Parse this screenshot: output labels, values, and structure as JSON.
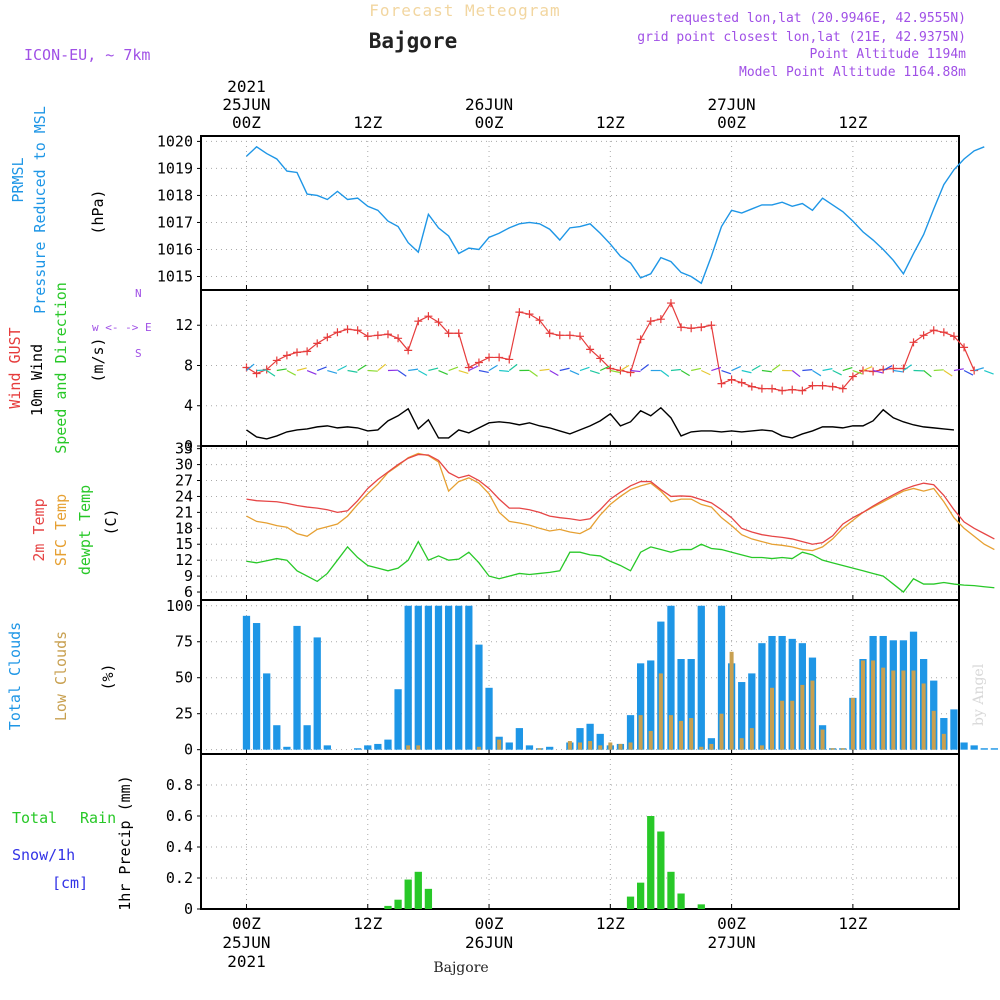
{
  "header": {
    "forecast_title": "Forecast Meteogram",
    "location": "Bajgore",
    "model": "ICON-EU, ~ 7km",
    "requested": "requested lon,lat (20.9946E, 42.9555N)",
    "grid_point": "grid point closest lon,lat (21E, 42.9375N)",
    "point_altitude": "Point Altitude 1194m",
    "model_altitude": "Model Point Altitude 1164.88m",
    "footer_location": "Bajgore",
    "watermark": "by Angel"
  },
  "colors": {
    "pressure": "#1e96e6",
    "gust": "#e63c3c",
    "wind": "#000000",
    "temp2m": "#e64646",
    "sfc": "#e6a032",
    "dewpt": "#28c828",
    "total_clouds": "#1e96e6",
    "low_clouds": "#c8a050",
    "rain": "#28c828",
    "snow": "#3232e6",
    "purple": "#a050e6"
  },
  "axis_labels": {
    "top": [
      {
        "x": 0,
        "lines": [
          "2021",
          "25JUN",
          "00Z"
        ]
      },
      {
        "x": 12,
        "lines": [
          "12Z"
        ]
      },
      {
        "x": 24,
        "lines": [
          "26JUN",
          "00Z"
        ]
      },
      {
        "x": 36,
        "lines": [
          "12Z"
        ]
      },
      {
        "x": 48,
        "lines": [
          "27JUN",
          "00Z"
        ]
      },
      {
        "x": 60,
        "lines": [
          "12Z"
        ]
      }
    ],
    "bottom": [
      {
        "x": 0,
        "lines": [
          "00Z",
          "25JUN",
          "2021"
        ]
      },
      {
        "x": 12,
        "lines": [
          "12Z"
        ]
      },
      {
        "x": 24,
        "lines": [
          "00Z",
          "26JUN"
        ]
      },
      {
        "x": 36,
        "lines": [
          "12Z"
        ]
      },
      {
        "x": 48,
        "lines": [
          "00Z",
          "27JUN"
        ]
      },
      {
        "x": 60,
        "lines": [
          "12Z"
        ]
      }
    ]
  },
  "chart_data": [
    {
      "type": "line",
      "xlabel": "",
      "ylabel": [
        "PRMSL",
        "Pressure Reduced to MSL",
        "(hPa)"
      ],
      "ylim": [
        1014.5,
        1020.2
      ],
      "yticks": [
        1015,
        1016,
        1017,
        1018,
        1019,
        1020
      ],
      "grid": true,
      "series": [
        {
          "values": [
            1019.45,
            1019.8,
            1019.55,
            1019.35,
            1018.9,
            1018.85,
            1018.05,
            1018.0,
            1017.85,
            1018.15,
            1017.85,
            1017.9,
            1017.6,
            1017.45,
            1017.05,
            1016.85,
            1016.25,
            1015.9,
            1017.3,
            1016.8,
            1016.5,
            1015.85,
            1016.05,
            1016.0,
            1016.45,
            1016.6,
            1016.8,
            1016.95,
            1017.0,
            1016.95,
            1016.75,
            1016.35,
            1016.8,
            1016.85,
            1016.95,
            1016.6,
            1016.2,
            1015.75,
            1015.5,
            1014.95,
            1015.1,
            1015.7,
            1015.55,
            1015.15,
            1015.0,
            1014.75,
            1015.75,
            1016.85,
            1017.45,
            1017.35,
            1017.5,
            1017.65,
            1017.65,
            1017.75,
            1017.6,
            1017.7,
            1017.45,
            1017.9,
            1017.65,
            1017.4,
            1017.05,
            1016.65,
            1016.35,
            1016.0,
            1015.6,
            1015.1,
            1015.85,
            1016.55,
            1017.5,
            1018.4,
            1018.95,
            1019.35,
            1019.65,
            1019.8
          ]
        }
      ]
    },
    {
      "type": "line",
      "xlabel": "",
      "ylabel": [
        "Wind GUST",
        "10m Wind",
        "Speed and Direction",
        "(m/s)"
      ],
      "ylim": [
        0,
        15.5
      ],
      "yticks": [
        0,
        4,
        8,
        12
      ],
      "compass": "w <- -> E",
      "compass_n": "N",
      "compass_s": "S",
      "grid": true,
      "series": [
        {
          "values": [
            7.8,
            7.2,
            7.6,
            8.5,
            9.0,
            9.3,
            9.4,
            10.2,
            10.8,
            11.3,
            11.6,
            11.5,
            10.9,
            11.0,
            11.1,
            10.7,
            9.5,
            12.4,
            12.9,
            12.3,
            11.2,
            11.2,
            7.8,
            8.3,
            8.8,
            8.8,
            8.6,
            13.3,
            13.1,
            12.5,
            11.2,
            11.0,
            11.0,
            10.9,
            9.6,
            8.7,
            7.7,
            7.5,
            7.3,
            10.6,
            12.4,
            12.6,
            14.2,
            11.8,
            11.7,
            11.8,
            12.0,
            6.2,
            6.6,
            6.3,
            5.9,
            5.7,
            5.7,
            5.5,
            5.6,
            5.5,
            6.0,
            6.0,
            5.9,
            5.7,
            6.9,
            7.5,
            7.4,
            7.6,
            7.7,
            7.7,
            10.3,
            11.0,
            11.5,
            11.3,
            10.9,
            9.8,
            7.5
          ]
        },
        {
          "values": [
            1.6,
            0.9,
            0.7,
            1.0,
            1.4,
            1.6,
            1.7,
            1.9,
            2.0,
            1.8,
            1.9,
            1.8,
            1.5,
            1.6,
            2.5,
            3.0,
            3.7,
            1.7,
            2.6,
            0.8,
            0.8,
            1.6,
            1.3,
            1.8,
            2.3,
            2.4,
            2.3,
            2.1,
            2.3,
            2.0,
            1.8,
            1.5,
            1.2,
            1.6,
            2.0,
            2.5,
            3.2,
            2.0,
            2.4,
            3.5,
            3.0,
            3.8,
            2.8,
            1.0,
            1.4,
            1.5,
            1.5,
            1.4,
            1.5,
            1.4,
            1.5,
            1.6,
            1.5,
            1.0,
            0.8,
            1.2,
            1.5,
            1.9,
            1.9,
            1.8,
            2.0,
            2.0,
            2.5,
            3.6,
            2.8,
            2.4,
            2.1,
            1.9,
            1.8,
            1.7,
            1.6
          ]
        }
      ]
    },
    {
      "type": "line",
      "xlabel": "",
      "ylabel": [
        "2m Temp",
        "SFC Temp",
        "dewpt Temp",
        "(C)"
      ],
      "ylim": [
        4.5,
        33.5
      ],
      "yticks": [
        6,
        9,
        12,
        15,
        18,
        21,
        24,
        27,
        30,
        33
      ],
      "grid": true,
      "series": [
        {
          "values": [
            23.5,
            23.2,
            23.1,
            23.0,
            22.7,
            22.3,
            22.0,
            21.8,
            21.5,
            21.0,
            21.3,
            23.2,
            25.5,
            27.2,
            28.6,
            30.0,
            31.2,
            31.9,
            31.8,
            30.8,
            28.5,
            27.5,
            28.0,
            27.0,
            25.5,
            23.5,
            21.8,
            21.8,
            21.5,
            21.0,
            20.3,
            20.0,
            19.8,
            19.5,
            19.8,
            21.5,
            23.5,
            24.8,
            26.0,
            26.8,
            26.8,
            25.3,
            24.0,
            24.1,
            24.0,
            23.4,
            22.8,
            21.5,
            20.0,
            18.0,
            17.3,
            16.8,
            16.5,
            16.3,
            16.0,
            15.5,
            15.0,
            15.3,
            16.6,
            18.8,
            20.0,
            21.0,
            22.2,
            23.3,
            24.3,
            25.3,
            26.0,
            26.5,
            26.2,
            24.2,
            21.5,
            19.2,
            18.0,
            17.0,
            16.0
          ]
        },
        {
          "values": [
            20.3,
            19.3,
            19.0,
            18.5,
            18.2,
            17.0,
            16.5,
            17.8,
            18.3,
            18.8,
            20.3,
            22.5,
            24.5,
            26.3,
            28.5,
            29.8,
            31.3,
            32.1,
            31.7,
            30.5,
            25.0,
            26.8,
            27.5,
            26.5,
            24.5,
            21.0,
            19.3,
            19.0,
            18.6,
            18.0,
            17.5,
            17.8,
            17.3,
            17.0,
            18.0,
            20.5,
            22.5,
            24.0,
            25.3,
            26.0,
            26.5,
            25.0,
            23.0,
            23.5,
            23.5,
            22.5,
            22.0,
            20.0,
            18.5,
            16.8,
            16.0,
            15.5,
            15.0,
            14.8,
            14.5,
            14.0,
            13.8,
            14.5,
            16.0,
            18.0,
            19.5,
            21.0,
            22.0,
            23.0,
            24.0,
            25.0,
            25.5,
            25.0,
            25.5,
            23.0,
            20.0,
            18.0,
            16.5,
            15.0,
            14.0
          ]
        },
        {
          "values": [
            11.8,
            11.5,
            11.9,
            12.3,
            12.0,
            10.0,
            9.0,
            8.0,
            9.5,
            12.0,
            14.5,
            12.5,
            11.0,
            10.5,
            10.0,
            10.5,
            12.0,
            15.5,
            12.0,
            12.8,
            12.0,
            12.2,
            13.5,
            11.5,
            9.0,
            8.5,
            9.0,
            9.5,
            9.3,
            9.5,
            9.7,
            10.0,
            13.5,
            13.5,
            13.0,
            12.8,
            11.8,
            11.0,
            10.0,
            13.5,
            14.5,
            14.0,
            13.5,
            14.0,
            14.0,
            15.0,
            14.2,
            14.0,
            13.5,
            13.0,
            12.5,
            12.5,
            12.3,
            12.5,
            12.3,
            13.5,
            13.0,
            12.0,
            11.5,
            11.0,
            10.5,
            10.0,
            9.5,
            9.0,
            7.5,
            6.0,
            8.5,
            7.5,
            7.5,
            7.8,
            7.5,
            7.3,
            7.2,
            7.0,
            6.8
          ]
        }
      ]
    },
    {
      "type": "bar",
      "xlabel": "",
      "ylabel": [
        "Total Clouds",
        "Low Clouds",
        "(%)"
      ],
      "ylim": [
        -3,
        104
      ],
      "yticks": [
        0,
        25,
        50,
        75,
        100
      ],
      "grid": true,
      "series": [
        {
          "name": "total",
          "values": [
            93,
            88,
            53,
            17,
            2,
            86,
            17,
            78,
            3,
            0,
            0,
            1,
            3,
            4,
            7,
            42,
            100,
            100,
            100,
            100,
            100,
            100,
            100,
            73,
            43,
            9,
            5,
            15,
            3,
            1,
            2,
            0,
            5,
            15,
            18,
            11,
            3,
            4,
            24,
            60,
            62,
            89,
            100,
            63,
            63,
            100,
            8,
            100,
            60,
            47,
            53,
            74,
            79,
            79,
            77,
            74,
            64,
            17,
            1,
            1,
            36,
            63,
            79,
            79,
            76,
            76,
            82,
            63,
            48,
            22,
            28,
            5,
            3,
            1,
            1,
            3
          ]
        },
        {
          "name": "low",
          "values": [
            0,
            0,
            0,
            0,
            0,
            0,
            0,
            0,
            0,
            0,
            0,
            0,
            0,
            0,
            0,
            0,
            3,
            3,
            0,
            0,
            0,
            0,
            0,
            2,
            0,
            7,
            0,
            0,
            0,
            1,
            0,
            0,
            6,
            5,
            6,
            3,
            5,
            4,
            5,
            24,
            13,
            53,
            24,
            20,
            22,
            2,
            4,
            25,
            68,
            8,
            15,
            3,
            43,
            34,
            34,
            45,
            48,
            14,
            1,
            1,
            36,
            62,
            62,
            57,
            55,
            55,
            55,
            46,
            27,
            11,
            0,
            0,
            0,
            0,
            0,
            0
          ]
        }
      ]
    },
    {
      "type": "bar",
      "xlabel": "",
      "ylabel": [
        "1hr Precip (mm)"
      ],
      "legend_left": [
        "Total",
        "Rain",
        "Snow/1h",
        "[cm]"
      ],
      "ylim": [
        0,
        1.0
      ],
      "yticks": [
        0,
        0.2,
        0.4,
        0.6,
        0.8
      ],
      "grid": true,
      "series": [
        {
          "name": "rain",
          "bars": [
            [
              14,
              0.02
            ],
            [
              15,
              0.06
            ],
            [
              16,
              0.19
            ],
            [
              17,
              0.24
            ],
            [
              18,
              0.13
            ],
            [
              38,
              0.08
            ],
            [
              39,
              0.17
            ],
            [
              40,
              0.6
            ],
            [
              41,
              0.5
            ],
            [
              42,
              0.24
            ],
            [
              43,
              0.1
            ],
            [
              45,
              0.03
            ]
          ]
        }
      ]
    }
  ]
}
